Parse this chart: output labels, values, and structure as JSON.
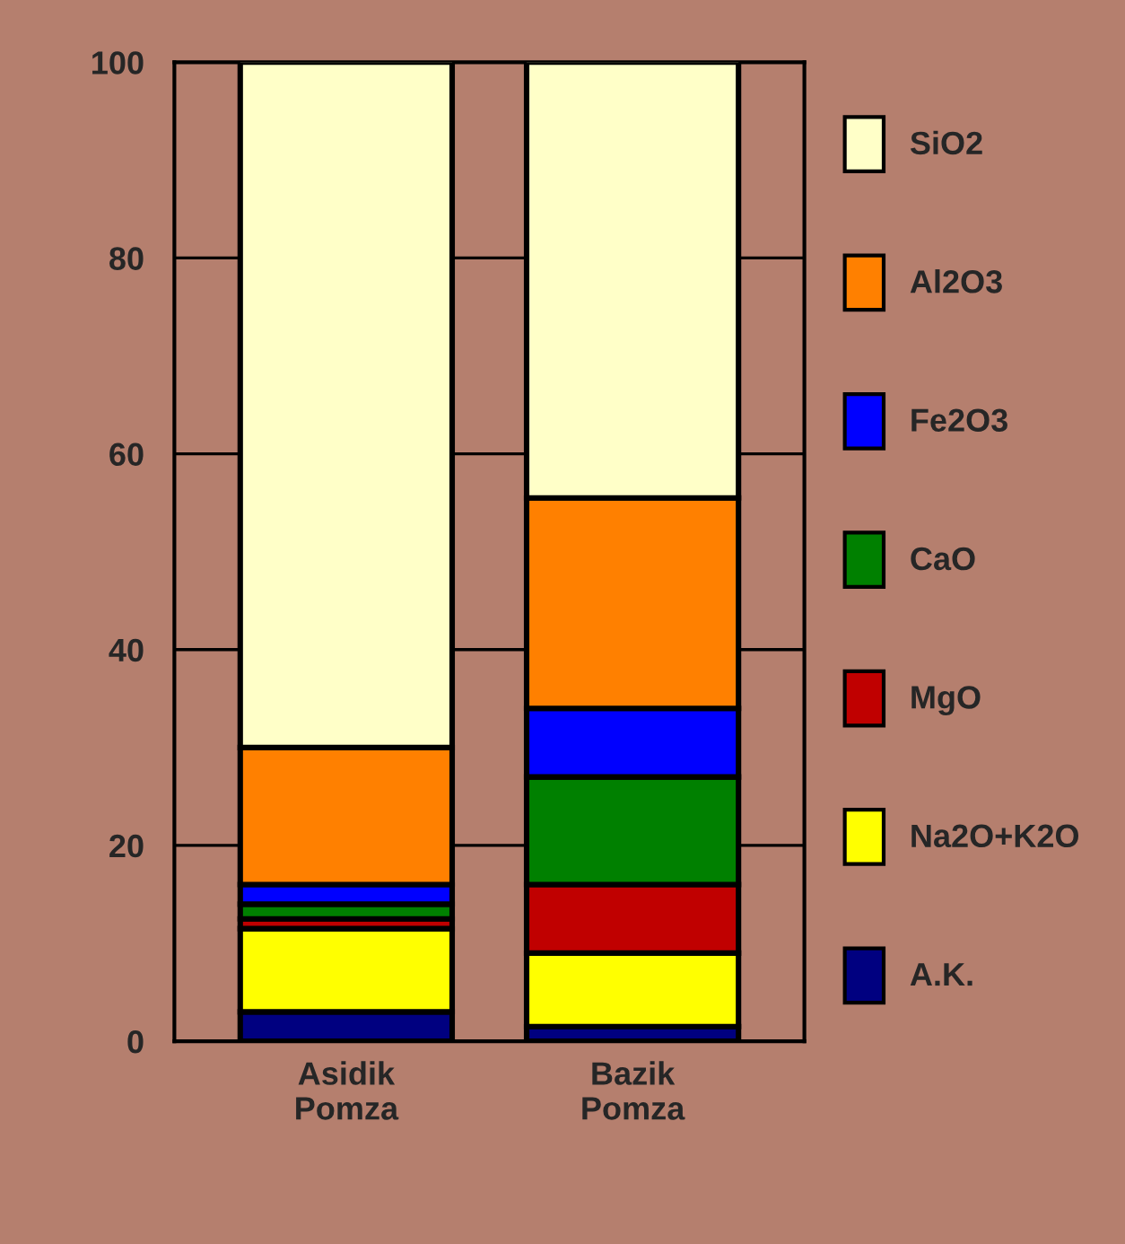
{
  "chart_data": {
    "type": "bar",
    "stacked": true,
    "categories": [
      "Asidik\nPomza",
      "Bazik\nPomza"
    ],
    "series": [
      {
        "name": "A.K.",
        "color": "#000080",
        "values": [
          3,
          1.5
        ]
      },
      {
        "name": "Na2O+K2O",
        "color": "#ffff00",
        "values": [
          8.5,
          7.5
        ]
      },
      {
        "name": "MgO",
        "color": "#c00000",
        "values": [
          1,
          7
        ]
      },
      {
        "name": "CaO",
        "color": "#008000",
        "values": [
          1.5,
          11
        ]
      },
      {
        "name": "Fe2O3",
        "color": "#0000ff",
        "values": [
          2,
          7
        ]
      },
      {
        "name": "Al2O3",
        "color": "#ff8000",
        "values": [
          14,
          21.5
        ]
      },
      {
        "name": "SiO2",
        "color": "#ffffc8",
        "values": [
          70,
          44.5
        ]
      }
    ],
    "ylim": [
      0,
      100
    ],
    "yticks": [
      0,
      20,
      40,
      60,
      80,
      100
    ],
    "grid": "y",
    "legend": "right"
  }
}
